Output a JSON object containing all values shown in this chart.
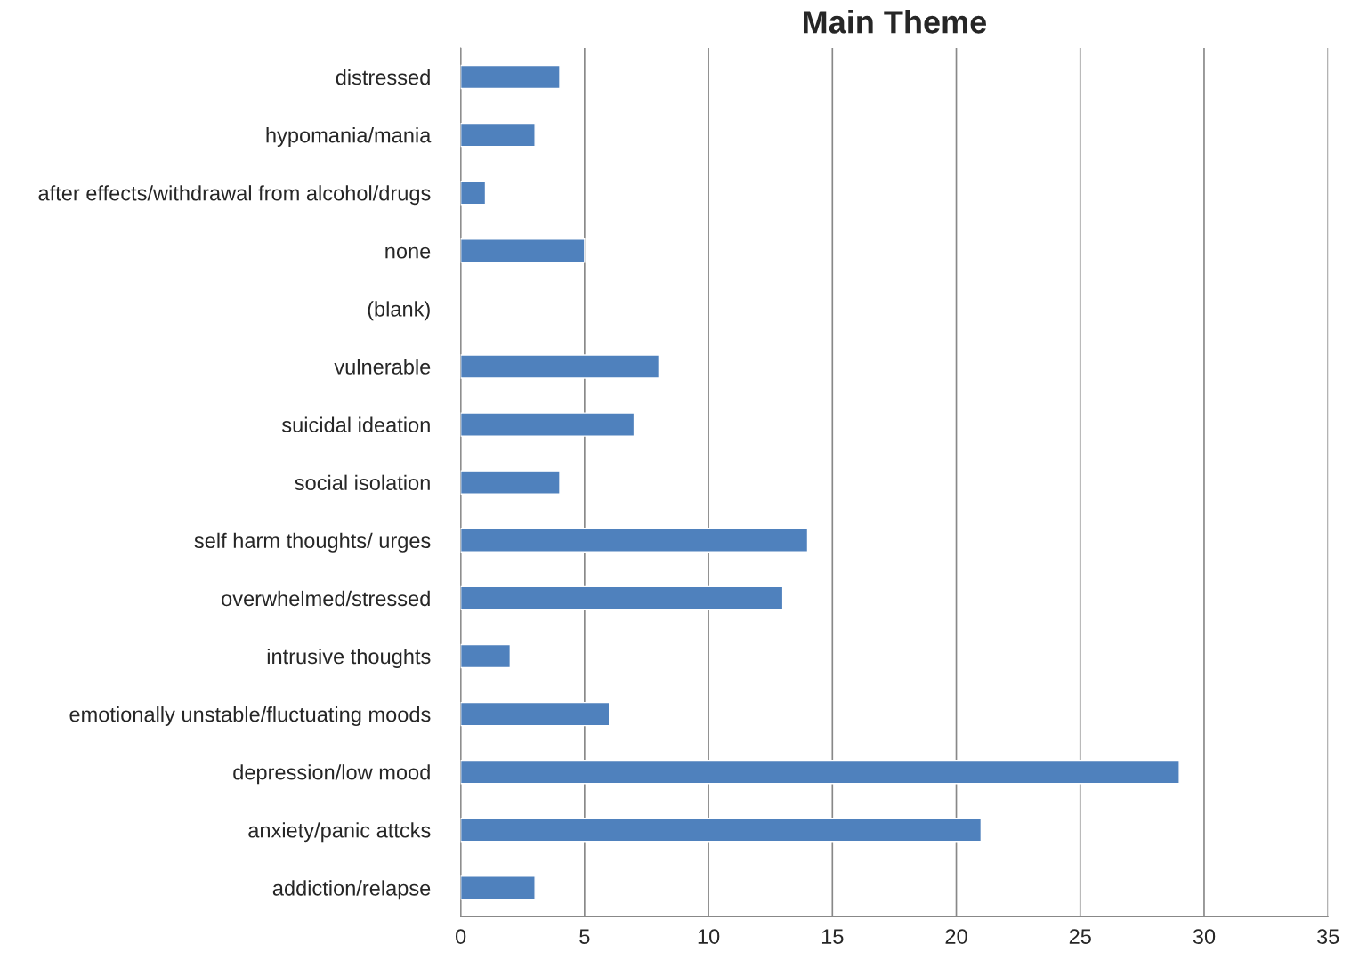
{
  "chart_data": {
    "type": "bar",
    "orientation": "horizontal",
    "title": "Main Theme",
    "categories": [
      "distressed",
      "hypomania/mania",
      "after effects/withdrawal from alcohol/drugs",
      "none",
      "(blank)",
      "vulnerable",
      "suicidal ideation",
      "social isolation",
      "self harm thoughts/ urges",
      "overwhelmed/stressed",
      "intrusive thoughts",
      "emotionally unstable/fluctuating moods",
      "depression/low mood",
      "anxiety/panic attcks",
      "addiction/relapse"
    ],
    "values": [
      4,
      3,
      1,
      5,
      null,
      8,
      7,
      4,
      14,
      13,
      2,
      6,
      29,
      21,
      3
    ],
    "color": "#4f81bd",
    "xlim": [
      0,
      35
    ],
    "xticks": [
      0,
      5,
      10,
      15,
      20,
      25,
      30,
      35
    ],
    "grid": "x"
  }
}
